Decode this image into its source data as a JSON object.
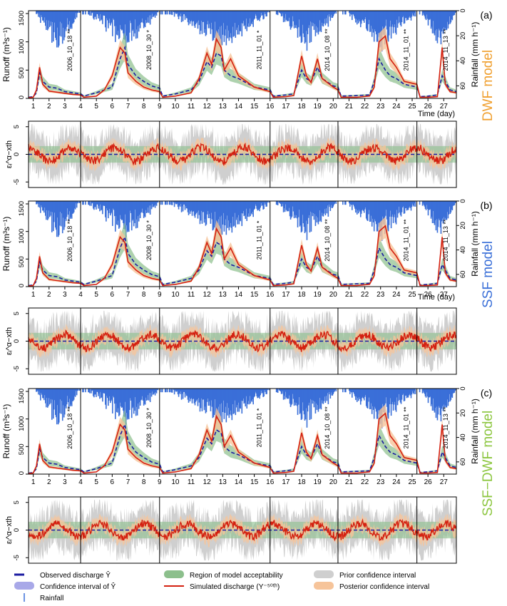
{
  "chart_data": {
    "type": "line",
    "events": [
      {
        "label": "2006_10_18",
        "stars": "**",
        "x_start": 0.7,
        "x_end": 4.0,
        "ticks": [
          1,
          2,
          3,
          4
        ]
      },
      {
        "label": "2008_10_30",
        "stars": "*",
        "x_start": 4.0,
        "x_end": 9.0,
        "ticks": [
          5,
          6,
          7,
          8,
          9
        ]
      },
      {
        "label": "2011_11_01",
        "stars": "*",
        "x_start": 9.0,
        "x_end": 16.0,
        "ticks": [
          10,
          11,
          12,
          13,
          14,
          15,
          16
        ]
      },
      {
        "label": "2014_10_08",
        "stars": "**",
        "x_start": 16.0,
        "x_end": 20.3,
        "ticks": [
          17,
          18,
          19,
          20
        ]
      },
      {
        "label": "2014_11_01",
        "stars": "**",
        "x_start": 20.3,
        "x_end": 25.3,
        "ticks": [
          21,
          22,
          23,
          24,
          25
        ]
      },
      {
        "label": "2014_11_13",
        "stars": "**",
        "x_start": 25.3,
        "x_end": 27.8,
        "ticks": [
          26,
          27
        ]
      }
    ],
    "runoff_axis": {
      "label": "Runoff (m³s⁻¹)",
      "ylim": [
        0,
        1500
      ],
      "ticks": [
        0,
        500,
        1000,
        1500
      ]
    },
    "rainfall_axis": {
      "label": "Rainfall (mm h⁻¹)",
      "ylim": [
        0,
        70
      ],
      "inverted": true,
      "ticks": [
        0,
        20,
        40,
        60
      ]
    },
    "residual_axis": {
      "label": "εᵢ^α−xth",
      "ylim": [
        -6,
        6
      ],
      "ticks": [
        -5,
        0,
        5
      ]
    },
    "x_axis": {
      "label": "Time (day)"
    },
    "panels": [
      {
        "tag": "(a)",
        "model": "DWF",
        "model_word": "model",
        "model_color": "#f0a030"
      },
      {
        "tag": "(b)",
        "model": "SSF",
        "model_word": "model",
        "model_color": "#3a6fd8"
      },
      {
        "tag": "(c)",
        "model": "SSF−DWF",
        "model_word": "model",
        "model_color": "#8cc63f"
      }
    ],
    "series": [
      {
        "name": "Observed discharge Ŷ",
        "color": "#1a1aa0",
        "style": "dashed",
        "x": [
          0.7,
          1.0,
          1.2,
          1.4,
          1.6,
          2.0,
          2.5,
          3.0,
          3.5,
          4.0,
          4.2,
          5.0,
          5.5,
          6.0,
          6.5,
          6.8,
          7.0,
          7.5,
          8.0,
          8.5,
          9.0,
          9.2,
          10.0,
          11.0,
          11.5,
          12.0,
          12.3,
          12.6,
          12.9,
          13.1,
          13.5,
          14.0,
          15.0,
          16.0,
          16.2,
          17.0,
          17.5,
          18.0,
          18.3,
          18.6,
          19.0,
          19.3,
          20.0,
          20.3,
          20.5,
          21.5,
          22.3,
          22.6,
          22.9,
          23.3,
          23.6,
          24.0,
          24.5,
          25.3,
          25.5,
          26.0,
          26.6,
          26.9,
          27.1,
          27.4,
          27.8
        ],
        "y": [
          20,
          30,
          100,
          450,
          300,
          200,
          180,
          120,
          100,
          80,
          40,
          100,
          150,
          200,
          700,
          900,
          600,
          400,
          300,
          220,
          180,
          40,
          80,
          150,
          300,
          650,
          550,
          800,
          750,
          500,
          400,
          350,
          200,
          150,
          40,
          60,
          80,
          500,
          350,
          300,
          550,
          350,
          220,
          200,
          40,
          50,
          60,
          300,
          700,
          500,
          400,
          350,
          250,
          200,
          30,
          40,
          60,
          400,
          300,
          150,
          120
        ]
      },
      {
        "name": "Simulated discharge (Y⁻⁵⁰ᵗʰ)",
        "color": "#d42010",
        "style": "solid",
        "x": [
          0.7,
          1.0,
          1.2,
          1.4,
          1.6,
          2.0,
          2.5,
          3.0,
          3.5,
          4.0,
          4.2,
          5.0,
          5.5,
          6.0,
          6.5,
          6.8,
          7.0,
          7.5,
          8.0,
          8.5,
          9.0,
          9.2,
          10.0,
          11.0,
          11.5,
          12.0,
          12.3,
          12.6,
          12.9,
          13.1,
          13.5,
          14.0,
          15.0,
          16.0,
          16.2,
          17.0,
          17.5,
          18.0,
          18.3,
          18.6,
          19.0,
          19.3,
          20.0,
          20.3,
          20.5,
          21.5,
          22.3,
          22.6,
          22.9,
          23.3,
          23.6,
          24.0,
          24.5,
          25.3,
          25.5,
          26.0,
          26.6,
          26.9,
          27.1,
          27.4,
          27.8
        ],
        "y": [
          10,
          20,
          150,
          550,
          250,
          130,
          110,
          90,
          70,
          60,
          20,
          40,
          150,
          400,
          900,
          800,
          450,
          300,
          200,
          150,
          120,
          20,
          40,
          100,
          350,
          800,
          600,
          1050,
          900,
          500,
          700,
          400,
          200,
          120,
          20,
          30,
          50,
          750,
          400,
          280,
          700,
          350,
          200,
          150,
          20,
          20,
          40,
          200,
          1000,
          1100,
          700,
          550,
          300,
          250,
          20,
          20,
          30,
          900,
          250,
          120,
          100
        ]
      }
    ],
    "legend": [
      {
        "label": "Observed discharge Ŷ",
        "marker": "dash",
        "color": "#1a1aa0"
      },
      {
        "label": "Confidence interval of Ŷ",
        "marker": "band",
        "color": "#a8a8e8"
      },
      {
        "label": "Rainfall",
        "marker": "bar",
        "color": "#3a6fd8"
      },
      {
        "label": "Region of model acceptability",
        "marker": "band",
        "color": "#8cbf8c"
      },
      {
        "label": "Simulated discharge (Y⁻⁵⁰ᵗʰ)",
        "marker": "line",
        "color": "#d42010"
      },
      {
        "label": "Prior confidence interval",
        "marker": "band",
        "color": "#cfcfcf"
      },
      {
        "label": "Posterior confidence interval",
        "marker": "band",
        "color": "#f6c49a"
      }
    ]
  }
}
